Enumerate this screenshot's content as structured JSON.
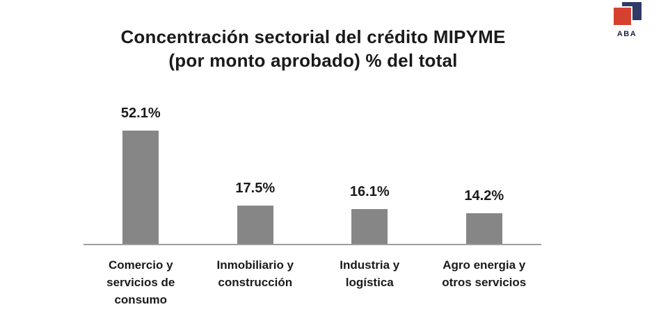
{
  "page": {
    "background": "#ffffff"
  },
  "logo": {
    "text": "ABA",
    "red_color": "#d6402e",
    "navy_color": "#2e3a68",
    "text_color": "#1b2437"
  },
  "chart_data": {
    "type": "bar",
    "title": "Concentración sectorial del crédito MIPYME (por monto aprobado) % del total",
    "title_lines": [
      "Concentración sectorial del crédito MIPYME",
      "(por monto aprobado) % del total"
    ],
    "categories": [
      "Comercio y servicios de consumo",
      "Inmobiliario y construcción",
      "Industria y logística",
      "Agro energia y otros servicios"
    ],
    "values": [
      52.1,
      17.5,
      16.1,
      14.2
    ],
    "value_labels": [
      "52.1%",
      "17.5%",
      "16.1%",
      "14.2%"
    ],
    "unit": "%",
    "xlabel": "",
    "ylabel": "",
    "ylim": [
      0,
      55
    ],
    "grid": false,
    "legend": "none",
    "bar_color": "#868686",
    "axis_color": "#9d9d9d",
    "text_color": "#1a1a1a"
  }
}
